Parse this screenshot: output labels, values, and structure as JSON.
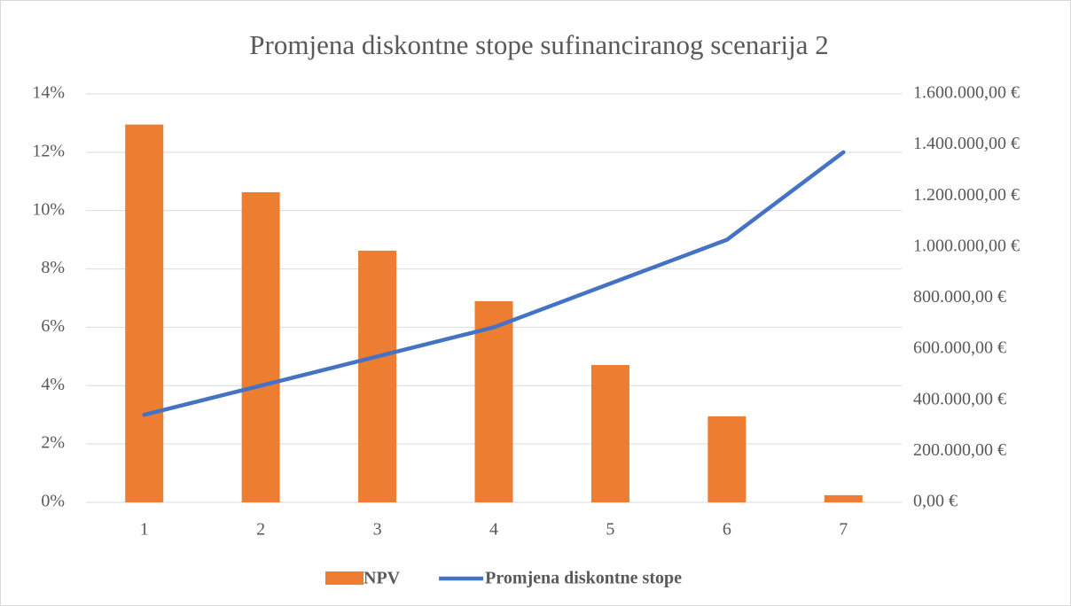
{
  "chart_data": {
    "type": "combo",
    "title": "Promjena diskontne stope sufinanciranog scenarija 2",
    "categories": [
      "1",
      "2",
      "3",
      "4",
      "5",
      "6",
      "7"
    ],
    "series": [
      {
        "name": "NPV",
        "type": "bar",
        "axis": "y2",
        "color": "#ed7d31",
        "values": [
          1480000,
          1215000,
          986000,
          788000,
          538000,
          337000,
          28000
        ]
      },
      {
        "name": "Promjena diskontne stope",
        "type": "line",
        "color": "#4472c4",
        "values": [
          3,
          4,
          5,
          6,
          7.5,
          9,
          12
        ]
      }
    ],
    "ylim": [
      0,
      14
    ],
    "yticks": [
      {
        "value": 0,
        "label": "0%"
      },
      {
        "value": 2,
        "label": "2%"
      },
      {
        "value": 4,
        "label": "4%"
      },
      {
        "value": 6,
        "label": "6%"
      },
      {
        "value": 8,
        "label": "8%"
      },
      {
        "value": 10,
        "label": "10%"
      },
      {
        "value": 12,
        "label": "12%"
      },
      {
        "value": 14,
        "label": "14%"
      }
    ],
    "y2lim": [
      0,
      1600000
    ],
    "y2ticks": [
      {
        "value": 0,
        "label": "0,00 €"
      },
      {
        "value": 200000,
        "label": "200.000,00 €"
      },
      {
        "value": 400000,
        "label": "400.000,00 €"
      },
      {
        "value": 600000,
        "label": "600.000,00 €"
      },
      {
        "value": 800000,
        "label": "800.000,00 €"
      },
      {
        "value": 1000000,
        "label": "1.000.000,00 €"
      },
      {
        "value": 1200000,
        "label": "1.200.000,00 €"
      },
      {
        "value": 1400000,
        "label": "1.400.000,00 €"
      },
      {
        "value": 1600000,
        "label": "1.600.000,00 €"
      }
    ],
    "grid": true,
    "legend": "bottom"
  }
}
